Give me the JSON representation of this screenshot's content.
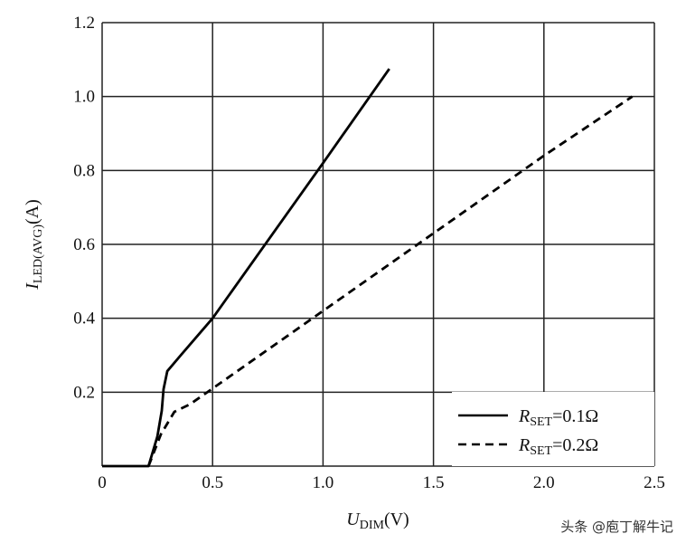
{
  "chart_data": {
    "type": "line",
    "xlabel": {
      "main": "U",
      "sub": "DIM",
      "unit": "(V)"
    },
    "ylabel": {
      "main": "I",
      "sub": "LED(AVG)",
      "unit": "(A)"
    },
    "xlim": [
      0,
      2.5
    ],
    "ylim": [
      0,
      1.2
    ],
    "xticks": [
      "0",
      "0.5",
      "1.0",
      "1.5",
      "2.0",
      "2.5"
    ],
    "xtick_values": [
      0,
      0.5,
      1.0,
      1.5,
      2.0,
      2.5
    ],
    "yticks": [
      "0.2",
      "0.4",
      "0.6",
      "0.8",
      "1.0",
      "1.2"
    ],
    "ytick_values": [
      0.2,
      0.4,
      0.6,
      0.8,
      1.0,
      1.2
    ],
    "grid": true,
    "legend_position": "bottom-right",
    "series": [
      {
        "name": "R_SET=0.1Ω",
        "label_main": "R",
        "label_sub": "SET",
        "label_rest": "=0.1Ω",
        "style": "solid",
        "color": "#000000",
        "x": [
          0,
          0.21,
          0.25,
          0.27,
          0.278,
          0.295,
          0.356,
          0.5,
          1.0,
          1.3
        ],
        "y": [
          0,
          0,
          0.08,
          0.15,
          0.208,
          0.257,
          0.3,
          0.4,
          0.82,
          1.075
        ]
      },
      {
        "name": "R_SET=0.2Ω",
        "label_main": "R",
        "label_sub": "SET",
        "label_rest": "=0.2Ω",
        "style": "dashed",
        "color": "#000000",
        "x": [
          0.21,
          0.266,
          0.327,
          0.397,
          0.5,
          1.0,
          1.5,
          2.0,
          2.4
        ],
        "y": [
          0,
          0.086,
          0.147,
          0.167,
          0.21,
          0.42,
          0.63,
          0.84,
          1.0
        ]
      }
    ]
  },
  "watermark": "头条 @庖丁解牛记"
}
